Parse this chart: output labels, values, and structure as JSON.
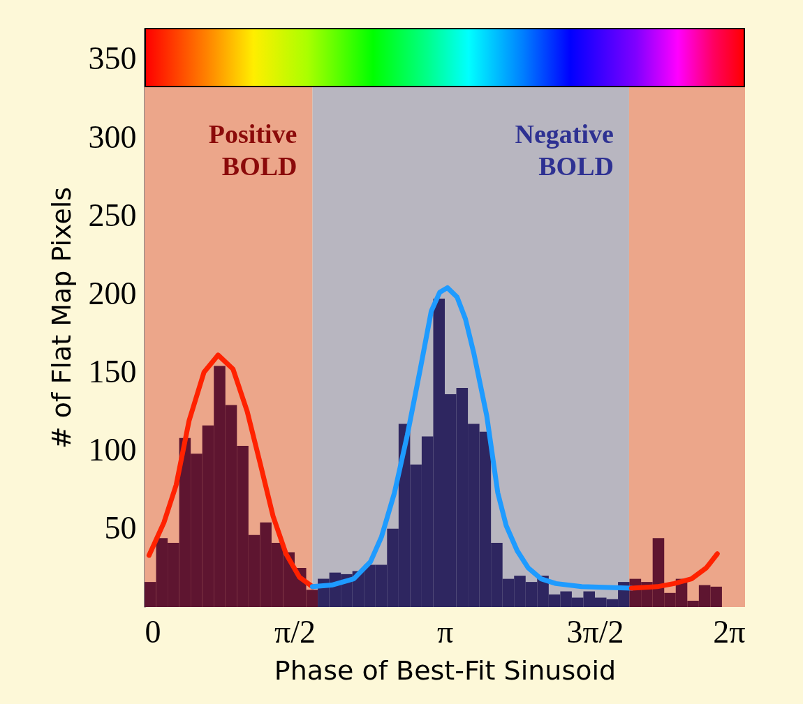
{
  "chart_data": {
    "type": "histogram",
    "xlabel": "Phase of Best-Fit Sinusoid",
    "ylabel": "# of Flat Map Pixels",
    "bins": [
      0,
      0.1208,
      0.2417,
      0.3625,
      0.4833,
      0.6042,
      0.725,
      0.8458,
      0.9666,
      1.0875,
      1.2083,
      1.3291,
      1.45,
      1.5708,
      1.6916,
      1.8125,
      1.9333,
      2.0541,
      2.1749,
      2.2958,
      2.4166,
      2.5374,
      2.6583,
      2.7791,
      2.8999,
      3.0208,
      3.1416,
      3.2624,
      3.3833,
      3.5041,
      3.6249,
      3.7458,
      3.8666,
      3.9874,
      4.1082,
      4.2291,
      4.3499,
      4.4707,
      4.5916,
      4.7124,
      4.8332,
      4.9541,
      5.0749,
      5.1957,
      5.3165,
      5.4374,
      5.5582,
      5.679,
      5.7999,
      5.9207,
      6.0415
    ],
    "values": [
      16,
      44,
      41,
      108,
      98,
      116,
      154,
      129,
      103,
      46,
      54,
      41,
      35,
      25,
      11,
      18,
      22,
      21,
      23,
      27,
      27,
      50,
      117,
      91,
      109,
      197,
      136,
      140,
      117,
      112,
      41,
      18,
      20,
      16,
      20,
      8,
      10,
      6,
      10,
      6,
      5,
      16,
      18,
      16,
      44,
      9,
      18,
      4,
      14,
      13
    ],
    "colors": [
      "#5e1530",
      "#5e1530",
      "#5e1530",
      "#5e1530",
      "#5e1530",
      "#5e1530",
      "#5e1530",
      "#5e1530",
      "#5e1530",
      "#5e1530",
      "#5e1530",
      "#5e1530",
      "#5e1530",
      "#5e1530",
      "#5e1530",
      "#2e2660",
      "#2e2660",
      "#2e2660",
      "#2e2660",
      "#2e2660",
      "#2e2660",
      "#2e2660",
      "#2e2660",
      "#2e2660",
      "#2e2660",
      "#2e2660",
      "#2e2660",
      "#2e2660",
      "#2e2660",
      "#2e2660",
      "#2e2660",
      "#2e2660",
      "#2e2660",
      "#2e2660",
      "#2e2660",
      "#2e2660",
      "#2e2660",
      "#2e2660",
      "#2e2660",
      "#2e2660",
      "#2e2660",
      "#2e2660",
      "#5e1530",
      "#5e1530",
      "#5e1530",
      "#5e1530",
      "#5e1530",
      "#5e1530",
      "#5e1530",
      "#5e1530"
    ],
    "series": [
      {
        "type": "line",
        "color": "#ff2200",
        "x": [
          0.047,
          0.203,
          0.331,
          0.466,
          0.622,
          0.77,
          0.926,
          1.074,
          1.209,
          1.345,
          1.48,
          1.622,
          1.757
        ],
        "values": [
          33,
          54,
          78,
          119,
          150,
          161,
          152,
          125,
          92,
          58,
          34,
          19,
          13
        ]
      },
      {
        "type": "line",
        "color": "#1e9bff",
        "x": [
          1.757,
          1.959,
          2.189,
          2.365,
          2.48,
          2.615,
          2.75,
          2.885,
          3.0,
          3.088,
          3.169,
          3.27,
          3.358,
          3.446,
          3.581,
          3.696,
          3.784,
          3.899,
          4.014,
          4.149,
          4.304,
          4.574,
          5.095
        ],
        "values": [
          13,
          14,
          18,
          29,
          45,
          73,
          110,
          152,
          189,
          201,
          204,
          198,
          184,
          162,
          122,
          73,
          52,
          36,
          25,
          18,
          15,
          13,
          12
        ]
      },
      {
        "type": "line",
        "color": "#ff2200",
        "x": [
          5.095,
          5.365,
          5.541,
          5.723,
          5.878,
          5.993
        ],
        "values": [
          12,
          13,
          15,
          18,
          25,
          34
        ]
      }
    ],
    "xlim": [
      0,
      6.2832
    ],
    "xticks": [
      0,
      {
        "value": 1.5708,
        "label": "π/2"
      },
      {
        "value": 3.1416,
        "label": "π"
      },
      {
        "value": 4.7124,
        "label": "3π/2"
      },
      {
        "value": 6.2832,
        "label": "2π"
      }
    ],
    "ylim": [
      0,
      370
    ],
    "yticks": [
      50,
      100,
      150,
      200,
      250,
      300,
      350
    ],
    "bands": [
      {
        "axis": "x",
        "from": 0,
        "to": 1.757,
        "label": "Positive BOLD",
        "color": "#eca68a"
      },
      {
        "axis": "x",
        "from": 1.757,
        "to": 5.07,
        "label": "Negative BOLD",
        "color": "#b8b6c0"
      },
      {
        "axis": "x",
        "from": 5.07,
        "to": 6.2832,
        "color": "#eca68a"
      }
    ],
    "grid": false
  }
}
